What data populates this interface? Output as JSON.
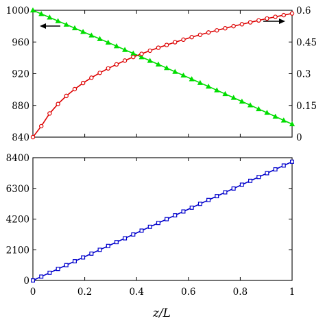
{
  "chart_data": [
    {
      "type": "line",
      "title": "",
      "xlabel": "z/L",
      "ylabel": "",
      "y2label": "",
      "xlim": [
        0,
        1
      ],
      "ylim": [
        840,
        1000
      ],
      "y2lim": [
        0,
        0.6
      ],
      "grid": false,
      "legend": "none",
      "x_ticks": [
        "0",
        "0.2",
        "0.4",
        "0.6",
        "0.8",
        "1"
      ],
      "y_ticks": [
        "840",
        "880",
        "920",
        "960",
        "1000"
      ],
      "y2_ticks": [
        "0",
        "0.15",
        "0.3",
        "0.45",
        "0.6"
      ],
      "annotations": [
        {
          "type": "arrow",
          "direction": "left",
          "axis": "left",
          "meaning": "green series uses left axis"
        },
        {
          "type": "arrow",
          "direction": "right",
          "axis": "right",
          "meaning": "red series uses right axis"
        }
      ],
      "series": [
        {
          "axis": "left",
          "color": "#00dd00",
          "marker": "triangle",
          "x": [
            0,
            0.0323,
            0.0645,
            0.0968,
            0.129,
            0.1613,
            0.1935,
            0.2258,
            0.2581,
            0.2903,
            0.3226,
            0.3548,
            0.3871,
            0.4194,
            0.4516,
            0.4839,
            0.5161,
            0.5484,
            0.5806,
            0.6129,
            0.6452,
            0.6774,
            0.7097,
            0.7419,
            0.7742,
            0.8065,
            0.8387,
            0.871,
            0.9032,
            0.9355,
            0.9677,
            1
          ],
          "values": [
            1000,
            995.5,
            991,
            986.5,
            982,
            977.5,
            972.9,
            968.4,
            963.9,
            959.4,
            954.8,
            950.2,
            945.6,
            941,
            936.4,
            931.8,
            927.2,
            922.5,
            917.9,
            913.2,
            908.5,
            903.9,
            899.2,
            894.5,
            889.7,
            885,
            880.3,
            875.5,
            870.8,
            866,
            861.2,
            856.4
          ]
        },
        {
          "axis": "right",
          "color": "#dd0000",
          "marker": "circle",
          "x": [
            0,
            0.0323,
            0.0645,
            0.0968,
            0.129,
            0.1613,
            0.1935,
            0.2258,
            0.2581,
            0.2903,
            0.3226,
            0.3548,
            0.3871,
            0.4194,
            0.4516,
            0.4839,
            0.5161,
            0.5484,
            0.5806,
            0.6129,
            0.6452,
            0.6774,
            0.7097,
            0.7419,
            0.7742,
            0.8065,
            0.8387,
            0.871,
            0.9032,
            0.9355,
            0.9677,
            1
          ],
          "values": [
            0,
            0.052,
            0.112,
            0.157,
            0.195,
            0.227,
            0.256,
            0.281,
            0.304,
            0.325,
            0.344,
            0.362,
            0.379,
            0.394,
            0.409,
            0.423,
            0.436,
            0.449,
            0.461,
            0.473,
            0.484,
            0.495,
            0.505,
            0.515,
            0.525,
            0.534,
            0.543,
            0.552,
            0.561,
            0.569,
            0.577,
            0.585
          ]
        }
      ]
    },
    {
      "type": "line",
      "title": "",
      "xlabel": "z/L",
      "ylabel": "",
      "xlim": [
        0,
        1
      ],
      "ylim": [
        0,
        8400
      ],
      "grid": false,
      "legend": "none",
      "x_ticks": [
        "0",
        "0.2",
        "0.4",
        "0.6",
        "0.8",
        "1"
      ],
      "y_ticks": [
        "0",
        "2100",
        "4200",
        "6300",
        "8400"
      ],
      "series": [
        {
          "axis": "left",
          "color": "#0000cc",
          "marker": "square",
          "x": [
            0,
            0.0323,
            0.0645,
            0.0968,
            0.129,
            0.1613,
            0.1935,
            0.2258,
            0.2581,
            0.2903,
            0.3226,
            0.3548,
            0.3871,
            0.4194,
            0.4516,
            0.4839,
            0.5161,
            0.5484,
            0.5806,
            0.6129,
            0.6452,
            0.6774,
            0.7097,
            0.7419,
            0.7742,
            0.8065,
            0.8387,
            0.871,
            0.9032,
            0.9355,
            0.9677,
            1
          ],
          "values": [
            0,
            262,
            524,
            786,
            1048,
            1311,
            1573,
            1835,
            2097,
            2359,
            2621,
            2883,
            3145,
            3408,
            3670,
            3932,
            4194,
            4456,
            4718,
            4980,
            5242,
            5505,
            5767,
            6029,
            6291,
            6553,
            6815,
            7077,
            7339,
            7602,
            7864,
            8126
          ]
        }
      ]
    }
  ]
}
